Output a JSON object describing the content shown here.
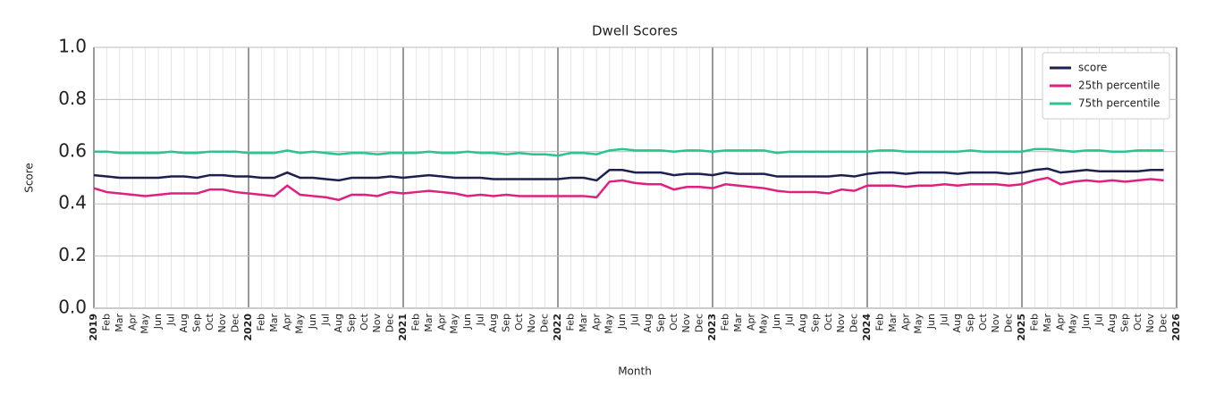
{
  "chart_data": {
    "type": "line",
    "title": "Dwell Scores",
    "x_label": "Month",
    "y_label": "Score",
    "categories": [
      "2019",
      "Feb",
      "Mar",
      "Apr",
      "May",
      "Jun",
      "Jul",
      "Aug",
      "Sep",
      "Oct",
      "Nov",
      "Dec",
      "2020",
      "Feb",
      "Mar",
      "Apr",
      "May",
      "Jun",
      "Jul",
      "Aug",
      "Sep",
      "Oct",
      "Nov",
      "Dec",
      "2021",
      "Feb",
      "Mar",
      "Apr",
      "May",
      "Jun",
      "Jul",
      "Aug",
      "Sep",
      "Oct",
      "Nov",
      "Dec",
      "2022",
      "Feb",
      "Mar",
      "Apr",
      "May",
      "Jun",
      "Jul",
      "Aug",
      "Sep",
      "Oct",
      "Nov",
      "Dec",
      "2023",
      "Feb",
      "Mar",
      "Apr",
      "May",
      "Jun",
      "Jul",
      "Aug",
      "Sep",
      "Oct",
      "Nov",
      "Dec",
      "2024",
      "Feb",
      "Mar",
      "Apr",
      "May",
      "Jun",
      "Jul",
      "Aug",
      "Sep",
      "Oct",
      "Nov",
      "Dec",
      "2025",
      "Feb",
      "Mar",
      "Apr",
      "May",
      "Jun",
      "Jul",
      "Aug",
      "Sep",
      "Oct",
      "Nov",
      "Dec",
      "2026"
    ],
    "series": [
      {
        "name": "score",
        "color": "#1d1f4f",
        "values": [
          0.51,
          0.505,
          0.5,
          0.5,
          0.5,
          0.5,
          0.505,
          0.505,
          0.5,
          0.51,
          0.51,
          0.505,
          0.505,
          0.5,
          0.5,
          0.52,
          0.5,
          0.5,
          0.495,
          0.49,
          0.5,
          0.5,
          0.5,
          0.505,
          0.5,
          0.505,
          0.51,
          0.505,
          0.5,
          0.5,
          0.5,
          0.495,
          0.495,
          0.495,
          0.495,
          0.495,
          0.495,
          0.5,
          0.5,
          0.49,
          0.53,
          0.53,
          0.52,
          0.52,
          0.52,
          0.51,
          0.515,
          0.515,
          0.51,
          0.52,
          0.515,
          0.515,
          0.515,
          0.505,
          0.505,
          0.505,
          0.505,
          0.505,
          0.51,
          0.505,
          0.515,
          0.52,
          0.52,
          0.515,
          0.52,
          0.52,
          0.52,
          0.515,
          0.52,
          0.52,
          0.52,
          0.515,
          0.52,
          0.53,
          0.535,
          0.52,
          0.525,
          0.53,
          0.525,
          0.525,
          0.525,
          0.525,
          0.53,
          0.53,
          null
        ]
      },
      {
        "name": "25th percentile",
        "color": "#e0207f",
        "values": [
          0.46,
          0.445,
          0.44,
          0.435,
          0.43,
          0.435,
          0.44,
          0.44,
          0.44,
          0.455,
          0.455,
          0.445,
          0.44,
          0.435,
          0.43,
          0.47,
          0.435,
          0.43,
          0.425,
          0.415,
          0.435,
          0.435,
          0.43,
          0.445,
          0.44,
          0.445,
          0.45,
          0.445,
          0.44,
          0.43,
          0.435,
          0.43,
          0.435,
          0.43,
          0.43,
          0.43,
          0.43,
          0.43,
          0.43,
          0.425,
          0.485,
          0.49,
          0.48,
          0.475,
          0.475,
          0.455,
          0.465,
          0.465,
          0.46,
          0.475,
          0.47,
          0.465,
          0.46,
          0.45,
          0.445,
          0.445,
          0.445,
          0.44,
          0.455,
          0.45,
          0.47,
          0.47,
          0.47,
          0.465,
          0.47,
          0.47,
          0.475,
          0.47,
          0.475,
          0.475,
          0.475,
          0.47,
          0.475,
          0.49,
          0.5,
          0.475,
          0.485,
          0.49,
          0.485,
          0.49,
          0.485,
          0.49,
          0.495,
          0.49,
          null
        ]
      },
      {
        "name": "75th percentile",
        "color": "#2ec38a",
        "values": [
          0.6,
          0.6,
          0.595,
          0.595,
          0.595,
          0.595,
          0.6,
          0.595,
          0.595,
          0.6,
          0.6,
          0.6,
          0.595,
          0.595,
          0.595,
          0.605,
          0.595,
          0.6,
          0.595,
          0.59,
          0.595,
          0.595,
          0.59,
          0.595,
          0.595,
          0.595,
          0.6,
          0.595,
          0.595,
          0.6,
          0.595,
          0.595,
          0.59,
          0.595,
          0.59,
          0.59,
          0.585,
          0.595,
          0.595,
          0.59,
          0.605,
          0.61,
          0.605,
          0.605,
          0.605,
          0.6,
          0.605,
          0.605,
          0.6,
          0.605,
          0.605,
          0.605,
          0.605,
          0.595,
          0.6,
          0.6,
          0.6,
          0.6,
          0.6,
          0.6,
          0.6,
          0.605,
          0.605,
          0.6,
          0.6,
          0.6,
          0.6,
          0.6,
          0.605,
          0.6,
          0.6,
          0.6,
          0.6,
          0.61,
          0.61,
          0.605,
          0.6,
          0.605,
          0.605,
          0.6,
          0.6,
          0.605,
          0.605,
          0.605,
          null
        ]
      }
    ],
    "ylim": [
      0,
      1
    ],
    "yticks": [
      {
        "value": 0,
        "label": "0.0"
      },
      {
        "value": 0.2,
        "label": "0.2"
      },
      {
        "value": 0.4,
        "label": "0.4"
      },
      {
        "value": 0.6,
        "label": "0.6"
      },
      {
        "value": 0.8,
        "label": "0.8"
      },
      {
        "value": 1,
        "label": "1.0"
      }
    ],
    "grid": true,
    "legend": "upper right"
  }
}
